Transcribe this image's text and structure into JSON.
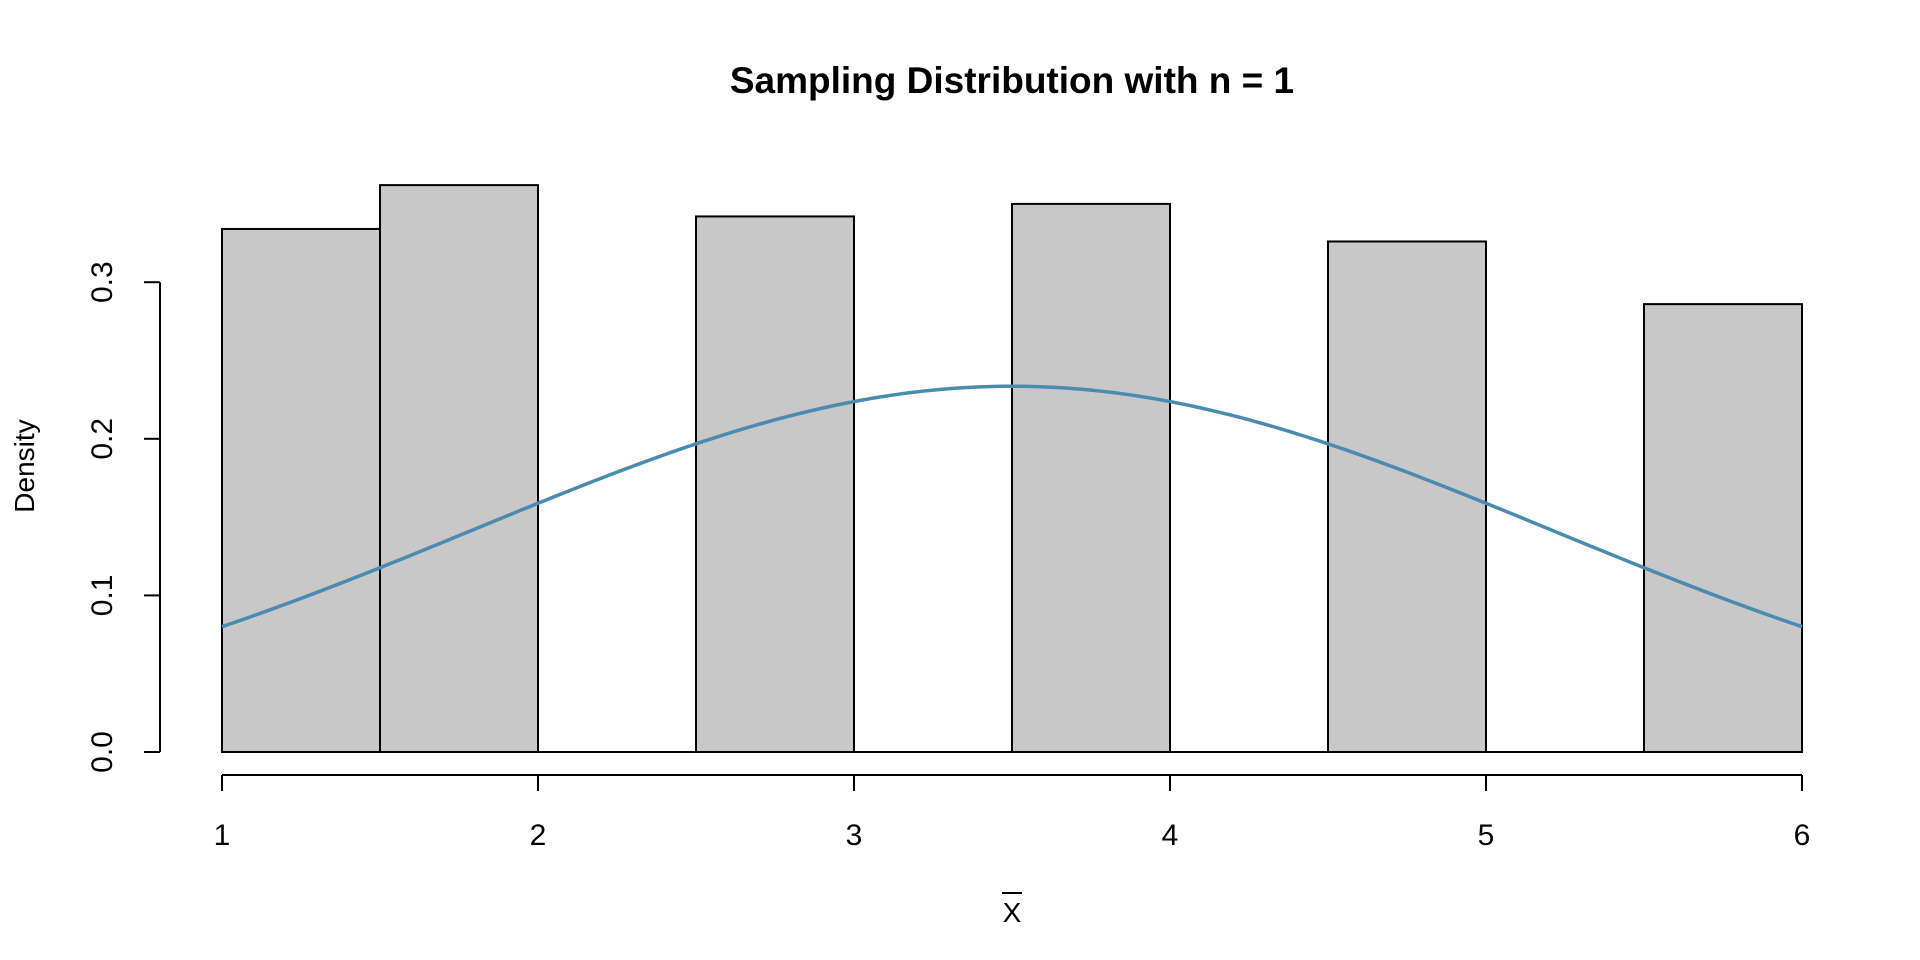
{
  "chart_data": {
    "type": "bar",
    "title": "Sampling Distribution with n = 1",
    "xlabel": "X",
    "xlabel_overline": true,
    "ylabel": "Density",
    "xlim": [
      1,
      6
    ],
    "ylim": [
      0,
      0.36
    ],
    "x_ticks": [
      {
        "value": 1,
        "label": "1"
      },
      {
        "value": 2,
        "label": "2"
      },
      {
        "value": 3,
        "label": "3"
      },
      {
        "value": 4,
        "label": "4"
      },
      {
        "value": 5,
        "label": "5"
      },
      {
        "value": 6,
        "label": "6"
      }
    ],
    "y_ticks": [
      {
        "value": 0,
        "label": "0.0"
      },
      {
        "value": 0.1,
        "label": "0.1"
      },
      {
        "value": 0.2,
        "label": "0.2"
      },
      {
        "value": 0.3,
        "label": "0.3"
      }
    ],
    "bins": [
      {
        "x0": 1.0,
        "x1": 1.5,
        "density": 0.334
      },
      {
        "x0": 1.5,
        "x1": 2.0,
        "density": 0.362
      },
      {
        "x0": 2.0,
        "x1": 2.5,
        "density": 0
      },
      {
        "x0": 2.5,
        "x1": 3.0,
        "density": 0.342
      },
      {
        "x0": 3.0,
        "x1": 3.5,
        "density": 0
      },
      {
        "x0": 3.5,
        "x1": 4.0,
        "density": 0.35
      },
      {
        "x0": 4.0,
        "x1": 4.5,
        "density": 0
      },
      {
        "x0": 4.5,
        "x1": 5.0,
        "density": 0.326
      },
      {
        "x0": 5.0,
        "x1": 5.5,
        "density": 0
      },
      {
        "x0": 5.5,
        "x1": 6.0,
        "density": 0.286
      }
    ],
    "bar_fill": "#c8c8c8",
    "bar_stroke": "#000000",
    "curve": {
      "type": "normal-density",
      "mean": 3.5,
      "sd": 1.708,
      "color": "#4a8bb0"
    },
    "grid": false,
    "legend": "none"
  }
}
